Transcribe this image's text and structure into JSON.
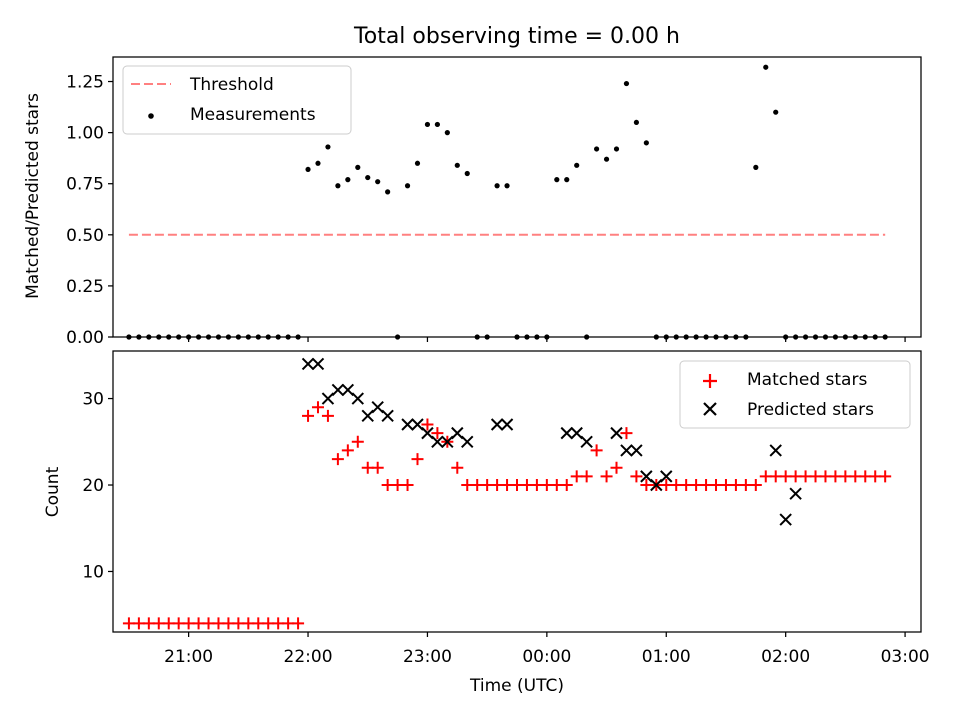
{
  "chart_data": [
    {
      "type": "scatter",
      "title": "Total observing time = 0.00 h",
      "xlabel": "",
      "ylabel": "Matched/Predicted stars",
      "xlim": [
        "20:22",
        "03:08"
      ],
      "ylim": [
        0,
        1.37
      ],
      "yticks": [
        "0.00",
        "0.25",
        "0.50",
        "0.75",
        "1.00",
        "1.25"
      ],
      "legend": {
        "location": "upper-left",
        "entries": [
          "Threshold",
          "Measurements"
        ]
      },
      "colors": {
        "threshold": "#ff8080",
        "measurements": "#000000"
      },
      "threshold": {
        "name": "Threshold",
        "x_start": "20:30",
        "x_end": "02:50",
        "y": 0.5
      },
      "series": [
        {
          "name": "Measurements",
          "x": [
            "20:30",
            "20:35",
            "20:40",
            "20:45",
            "20:50",
            "20:55",
            "21:00",
            "21:05",
            "21:10",
            "21:15",
            "21:20",
            "21:25",
            "21:30",
            "21:35",
            "21:40",
            "21:45",
            "21:50",
            "21:55",
            "22:00",
            "22:05",
            "22:10",
            "22:15",
            "22:20",
            "22:25",
            "22:30",
            "22:35",
            "22:40",
            "22:45",
            "22:50",
            "22:55",
            "23:00",
            "23:05",
            "23:10",
            "23:15",
            "23:20",
            "23:25",
            "23:30",
            "23:35",
            "23:40",
            "23:45",
            "23:50",
            "23:55",
            "00:00",
            "00:05",
            "00:10",
            "00:15",
            "00:20",
            "00:25",
            "00:30",
            "00:35",
            "00:40",
            "00:45",
            "00:50",
            "00:55",
            "01:00",
            "01:05",
            "01:10",
            "01:15",
            "01:20",
            "01:25",
            "01:30",
            "01:35",
            "01:40",
            "01:45",
            "01:50",
            "01:55",
            "02:00",
            "02:05",
            "02:10",
            "02:15",
            "02:20",
            "02:25",
            "02:30",
            "02:35",
            "02:40",
            "02:45",
            "02:50"
          ],
          "y": [
            0,
            0,
            0,
            0,
            0,
            0,
            0,
            0,
            0,
            0,
            0,
            0,
            0,
            0,
            0,
            0,
            0,
            0,
            0.82,
            0.85,
            0.93,
            0.74,
            0.77,
            0.83,
            0.78,
            0.76,
            0.71,
            0,
            0.74,
            0.85,
            1.04,
            1.04,
            1.0,
            0.84,
            0.8,
            0,
            0,
            0.74,
            0.74,
            0,
            0,
            0,
            0,
            0.77,
            0.77,
            0.84,
            0,
            0.92,
            0.87,
            0.92,
            1.24,
            1.05,
            0.95,
            0,
            0,
            0,
            0,
            0,
            0,
            0,
            0,
            0,
            0,
            0.83,
            1.32,
            1.1,
            0,
            0,
            0,
            0,
            0,
            0,
            0,
            0,
            0,
            0,
            0
          ]
        }
      ]
    },
    {
      "type": "scatter",
      "title": "",
      "xlabel": "Time (UTC)",
      "ylabel": "Count",
      "xlim": [
        "20:22",
        "03:08"
      ],
      "ylim": [
        3,
        35.5
      ],
      "yticks": [
        "10",
        "20",
        "30"
      ],
      "xticks": [
        "21:00",
        "22:00",
        "23:00",
        "00:00",
        "01:00",
        "02:00",
        "03:00"
      ],
      "legend": {
        "location": "upper-right",
        "entries": [
          "Matched stars",
          "Predicted stars"
        ]
      },
      "colors": {
        "matched": "#ff0000",
        "predicted": "#000000"
      },
      "series": [
        {
          "name": "Matched stars",
          "x": [
            "20:30",
            "20:35",
            "20:40",
            "20:45",
            "20:50",
            "20:55",
            "21:00",
            "21:05",
            "21:10",
            "21:15",
            "21:20",
            "21:25",
            "21:30",
            "21:35",
            "21:40",
            "21:45",
            "21:50",
            "21:55",
            "22:00",
            "22:05",
            "22:10",
            "22:15",
            "22:20",
            "22:25",
            "22:30",
            "22:35",
            "22:40",
            "22:45",
            "22:50",
            "22:55",
            "23:00",
            "23:05",
            "23:10",
            "23:15",
            "23:20",
            "23:25",
            "23:30",
            "23:35",
            "23:40",
            "23:45",
            "23:50",
            "23:55",
            "00:00",
            "00:05",
            "00:10",
            "00:15",
            "00:20",
            "00:25",
            "00:30",
            "00:35",
            "00:40",
            "00:45",
            "00:50",
            "00:55",
            "01:00",
            "01:05",
            "01:10",
            "01:15",
            "01:20",
            "01:25",
            "01:30",
            "01:35",
            "01:40",
            "01:45",
            "01:50",
            "01:55",
            "02:00",
            "02:05",
            "02:10",
            "02:15",
            "02:20",
            "02:25",
            "02:30",
            "02:35",
            "02:40",
            "02:45",
            "02:50"
          ],
          "y": [
            4,
            4,
            4,
            4,
            4,
            4,
            4,
            4,
            4,
            4,
            4,
            4,
            4,
            4,
            4,
            4,
            4,
            4,
            28,
            29,
            28,
            23,
            24,
            25,
            22,
            22,
            20,
            20,
            20,
            23,
            27,
            26,
            25,
            22,
            20,
            20,
            20,
            20,
            20,
            20,
            20,
            20,
            20,
            20,
            20,
            21,
            21,
            24,
            21,
            22,
            26,
            21,
            20,
            20,
            20,
            20,
            20,
            20,
            20,
            20,
            20,
            20,
            20,
            20,
            21,
            21,
            21,
            21,
            21,
            21,
            21,
            21,
            21,
            21,
            21,
            21,
            21
          ]
        },
        {
          "name": "Predicted stars",
          "x": [
            "22:00",
            "22:05",
            "22:10",
            "22:15",
            "22:20",
            "22:25",
            "22:30",
            "22:35",
            "22:40",
            "22:50",
            "22:55",
            "23:00",
            "23:05",
            "23:10",
            "23:15",
            "23:20",
            "23:35",
            "23:40",
            "00:10",
            "00:15",
            "00:20",
            "00:35",
            "00:40",
            "00:45",
            "00:50",
            "00:55",
            "01:00",
            "01:55",
            "02:00",
            "02:05"
          ],
          "y": [
            34,
            34,
            30,
            31,
            31,
            30,
            28,
            29,
            28,
            27,
            27,
            26,
            25,
            25,
            26,
            25,
            27,
            27,
            26,
            26,
            25,
            26,
            24,
            24,
            21,
            20,
            21,
            24,
            16,
            19
          ]
        }
      ]
    }
  ]
}
